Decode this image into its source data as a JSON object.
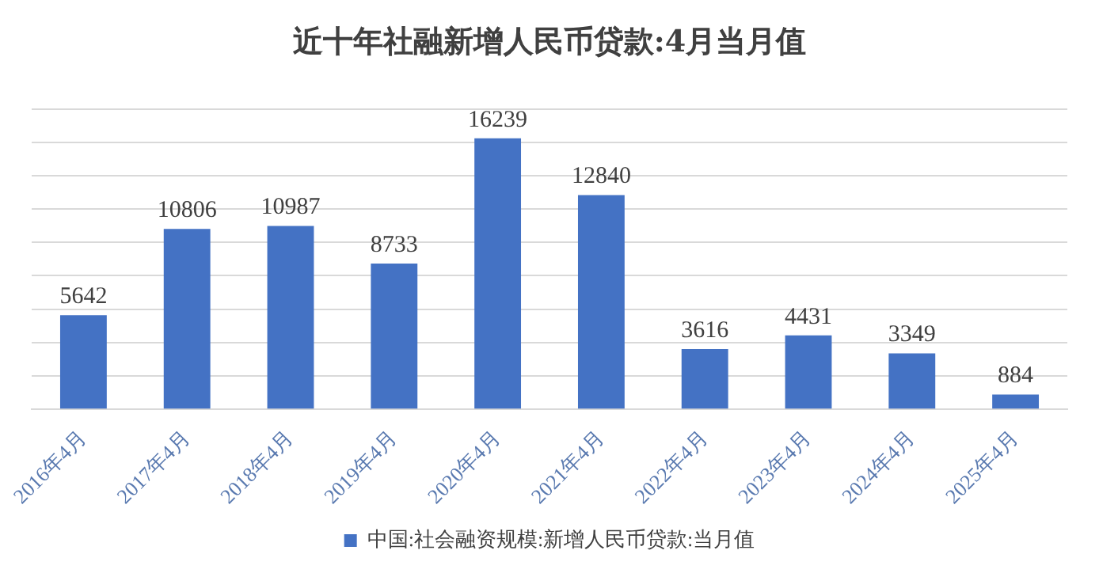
{
  "chart_data": {
    "type": "bar",
    "title": "近十年社融新增人民币贷款:4月当月值",
    "categories": [
      "2016年4月",
      "2017年4月",
      "2018年4月",
      "2019年4月",
      "2020年4月",
      "2021年4月",
      "2022年4月",
      "2023年4月",
      "2024年4月",
      "2025年4月"
    ],
    "series": [
      {
        "name": "中国:社会融资规模:新增人民币贷款:当月值",
        "color": "#4472c4",
        "values": [
          5642,
          10806,
          10987,
          8733,
          16239,
          12840,
          3616,
          4431,
          3349,
          884
        ]
      }
    ],
    "ylim": [
      0,
      18000
    ],
    "yticks": [
      {
        "value": 0,
        "label": null
      },
      {
        "value": 2000,
        "label": null
      },
      {
        "value": 4000,
        "label": null
      },
      {
        "value": 6000,
        "label": null
      },
      {
        "value": 8000,
        "label": null
      },
      {
        "value": 10000,
        "label": null
      },
      {
        "value": 12000,
        "label": null
      },
      {
        "value": 14000,
        "label": null
      },
      {
        "value": 16000,
        "label": null
      },
      {
        "value": 18000,
        "label": null
      }
    ],
    "tick_labels": "x",
    "grid": "y",
    "legend": "bottom",
    "data_labels": true
  }
}
